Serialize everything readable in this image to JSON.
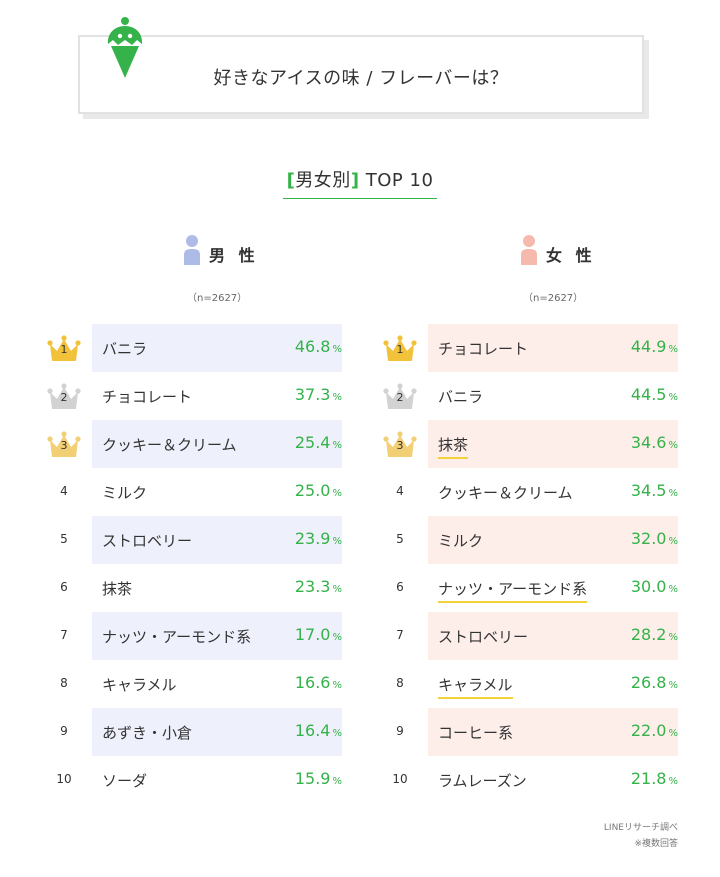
{
  "title": "好きなアイスの味 / フレーバーは？",
  "subtitle": {
    "bracket_open": "[",
    "label": "男女別",
    "bracket_close": "]",
    "rest": " TOP 10"
  },
  "colors": {
    "accent": "#35b24a",
    "male_row": "#eef0fb",
    "female_row": "#fdeeea",
    "gold": "#f2c23a",
    "silver": "#d2d2d2",
    "bronze": "#f2cf75",
    "underline": "#f2d23b"
  },
  "icons": {
    "title": "ice-cream-cone-icon",
    "male": "male-person-icon",
    "female": "female-person-icon",
    "rank": "crown-icon"
  },
  "footnote": {
    "source": "LINEリサーチ調べ",
    "note": "※複数回答"
  },
  "chart_data": [
    {
      "type": "table",
      "group": "男 性",
      "n_label": "（n=2627）",
      "unit": "%",
      "rows": [
        {
          "rank": "1",
          "flavor": "バニラ",
          "value": 46.8
        },
        {
          "rank": "2",
          "flavor": "チョコレート",
          "value": 37.3
        },
        {
          "rank": "3",
          "flavor": "クッキー＆クリーム",
          "value": 25.4
        },
        {
          "rank": "4",
          "flavor": "ミルク",
          "value": 25.0
        },
        {
          "rank": "5",
          "flavor": "ストロベリー",
          "value": 23.9
        },
        {
          "rank": "6",
          "flavor": "抹茶",
          "value": 23.3
        },
        {
          "rank": "7",
          "flavor": "ナッツ・アーモンド系",
          "value": 17.0
        },
        {
          "rank": "8",
          "flavor": "キャラメル",
          "value": 16.6
        },
        {
          "rank": "9",
          "flavor": "あずき・小倉",
          "value": 16.4
        },
        {
          "rank": "10",
          "flavor": "ソーダ",
          "value": 15.9
        }
      ]
    },
    {
      "type": "table",
      "group": "女 性",
      "n_label": "（n=2627）",
      "unit": "%",
      "rows": [
        {
          "rank": "1",
          "flavor": "チョコレート",
          "value": 44.9
        },
        {
          "rank": "2",
          "flavor": "バニラ",
          "value": 44.5
        },
        {
          "rank": "3",
          "flavor": "抹茶",
          "value": 34.6,
          "underlined": true
        },
        {
          "rank": "4",
          "flavor": "クッキー＆クリーム",
          "value": 34.5
        },
        {
          "rank": "5",
          "flavor": "ミルク",
          "value": 32.0
        },
        {
          "rank": "6",
          "flavor": "ナッツ・アーモンド系",
          "value": 30.0,
          "underlined": true
        },
        {
          "rank": "7",
          "flavor": "ストロベリー",
          "value": 28.2
        },
        {
          "rank": "8",
          "flavor": "キャラメル",
          "value": 26.8,
          "underlined": true
        },
        {
          "rank": "9",
          "flavor": "コーヒー系",
          "value": 22.0
        },
        {
          "rank": "10",
          "flavor": "ラムレーズン",
          "value": 21.8
        }
      ]
    }
  ]
}
